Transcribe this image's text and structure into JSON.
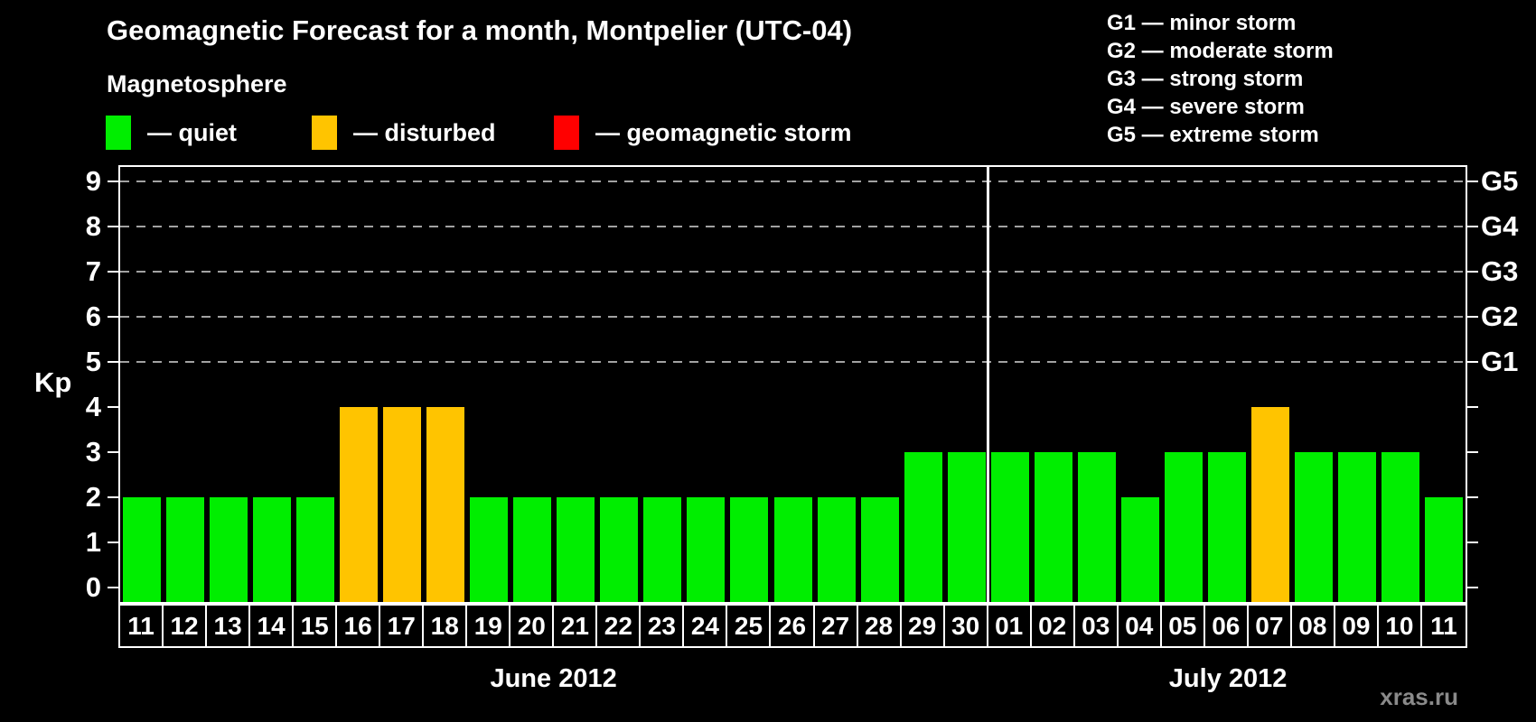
{
  "header": {
    "title": "Geomagnetic Forecast for a month, Montpelier (UTC-04)",
    "subtitle": "Magnetosphere",
    "legend": [
      {
        "label": "— quiet",
        "status": "quiet",
        "color": "#00ee00"
      },
      {
        "label": "— disturbed",
        "status": "disturbed",
        "color": "#ffc400"
      },
      {
        "label": "— geomagnetic storm",
        "status": "storm",
        "color": "#ff0000"
      }
    ],
    "g_scale_legend": [
      "G1 — minor storm",
      "G2 — moderate storm",
      "G3 — strong storm",
      "G4 — severe storm",
      "G5 — extreme storm"
    ]
  },
  "chart_data": {
    "type": "bar",
    "title": "Geomagnetic Forecast for a month, Montpelier (UTC-04)",
    "ylabel": "Kp",
    "ylim": [
      0,
      9
    ],
    "yticks": [
      0,
      1,
      2,
      3,
      4,
      5,
      6,
      7,
      8,
      9
    ],
    "gridlines_at": [
      5,
      6,
      7,
      8,
      9
    ],
    "grid_style": "dashed horizontal lines at storm levels only",
    "legend_position": "top-left",
    "right_axis_labels": [
      {
        "label": "G1",
        "value": 5
      },
      {
        "label": "G2",
        "value": 6
      },
      {
        "label": "G3",
        "value": 7
      },
      {
        "label": "G4",
        "value": 8
      },
      {
        "label": "G5",
        "value": 9
      }
    ],
    "status_colors": {
      "quiet": "#00ee00",
      "disturbed": "#ffc400",
      "storm": "#ff0000"
    },
    "months": [
      {
        "label": "June 2012",
        "categories": [
          "11",
          "12",
          "13",
          "14",
          "15",
          "16",
          "17",
          "18",
          "19",
          "20",
          "21",
          "22",
          "23",
          "24",
          "25",
          "26",
          "27",
          "28",
          "29",
          "30"
        ],
        "values": [
          2,
          2,
          2,
          2,
          2,
          4,
          4,
          4,
          2,
          2,
          2,
          2,
          2,
          2,
          2,
          2,
          2,
          2,
          3,
          3
        ],
        "statuses": [
          "quiet",
          "quiet",
          "quiet",
          "quiet",
          "quiet",
          "disturbed",
          "disturbed",
          "disturbed",
          "quiet",
          "quiet",
          "quiet",
          "quiet",
          "quiet",
          "quiet",
          "quiet",
          "quiet",
          "quiet",
          "quiet",
          "quiet",
          "quiet"
        ]
      },
      {
        "label": "July 2012",
        "categories": [
          "01",
          "02",
          "03",
          "04",
          "05",
          "06",
          "07",
          "08",
          "09",
          "10",
          "11"
        ],
        "values": [
          3,
          3,
          3,
          2,
          3,
          3,
          4,
          3,
          3,
          3,
          2
        ],
        "statuses": [
          "quiet",
          "quiet",
          "quiet",
          "quiet",
          "quiet",
          "quiet",
          "disturbed",
          "quiet",
          "quiet",
          "quiet",
          "quiet"
        ]
      }
    ]
  },
  "watermark": "xras.ru"
}
